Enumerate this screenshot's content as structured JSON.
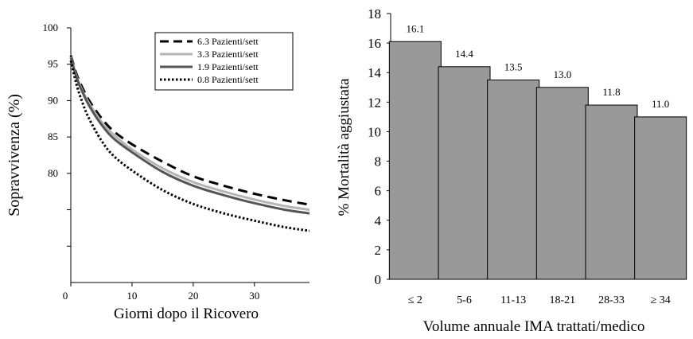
{
  "chart_data": [
    {
      "type": "line",
      "xlabel": "Giorni dopo il Ricovero",
      "ylabel": "Sopravvivenza (%)",
      "xlim": [
        0,
        39
      ],
      "ylim": [
        65,
        100
      ],
      "x_ticks": [
        "0",
        "10",
        "20",
        "30"
      ],
      "y_ticks": [
        "100",
        "95",
        "90",
        "85",
        "80"
      ],
      "grid": false,
      "legend_position": "top-right",
      "x": [
        0,
        1,
        2,
        3,
        5,
        7,
        10,
        15,
        20,
        25,
        30,
        35,
        39
      ],
      "series": [
        {
          "name": "6.3 Pazienti/sett",
          "style": "dashed",
          "color": "#000000",
          "values": [
            96.2,
            93.5,
            91.6,
            90.0,
            87.6,
            85.8,
            84.0,
            81.6,
            79.6,
            78.3,
            77.2,
            76.3,
            75.7
          ]
        },
        {
          "name": "3.3 Pazienti/sett",
          "style": "solid",
          "color": "#b5b5b5",
          "values": [
            96.0,
            93.2,
            91.2,
            89.6,
            87.1,
            85.3,
            83.3,
            80.7,
            78.8,
            77.5,
            76.4,
            75.5,
            75.0
          ]
        },
        {
          "name": "1.9 Pazienti/sett",
          "style": "solid",
          "color": "#555555",
          "values": [
            95.9,
            93.0,
            91.0,
            89.3,
            86.7,
            84.8,
            82.9,
            80.2,
            78.3,
            77.0,
            75.9,
            75.0,
            74.5
          ]
        },
        {
          "name": "0.8 Pazienti/sett",
          "style": "dotted",
          "color": "#000000",
          "values": [
            95.5,
            92.0,
            89.5,
            87.5,
            84.5,
            82.4,
            80.4,
            77.7,
            75.8,
            74.5,
            73.5,
            72.6,
            72.1
          ]
        }
      ]
    },
    {
      "type": "bar",
      "xlabel": "Volume annuale IMA trattati/medico",
      "ylabel": "% Mortalità aggiustata",
      "ylim": [
        0,
        18
      ],
      "y_ticks": [
        "0",
        "2",
        "4",
        "6",
        "8",
        "10",
        "12",
        "14",
        "16",
        "18"
      ],
      "grid": false,
      "bar_color": "#999999",
      "categories": [
        "≤ 2",
        "5-6",
        "11-13",
        "18-21",
        "28-33",
        "≥ 34"
      ],
      "values": [
        16.1,
        14.4,
        13.5,
        13.0,
        11.8,
        11.0
      ],
      "data_labels": [
        "16.1",
        "14.4",
        "13.5",
        "13.0",
        "11.8",
        "11.0"
      ]
    }
  ]
}
